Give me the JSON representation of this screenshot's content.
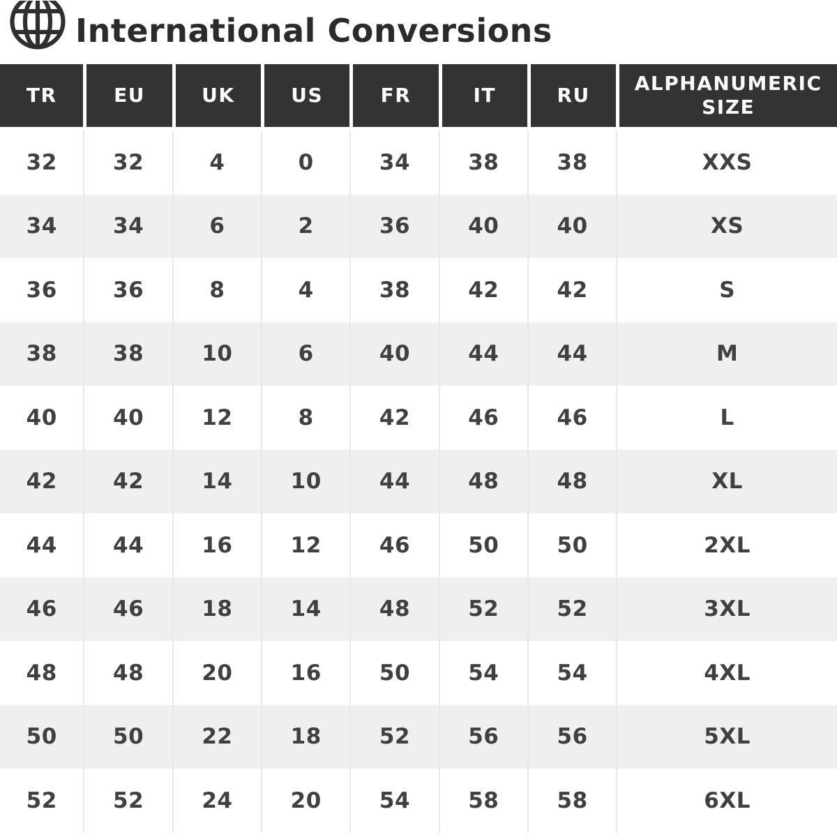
{
  "header": {
    "title": "International Conversions",
    "icon": "globe-icon"
  },
  "colors": {
    "header_bg": "#333234",
    "header_text": "#fafafa",
    "stripe_row": "#f0eff0",
    "plain_row": "#ffffff",
    "body_text": "#403f41",
    "title_text": "#2b2a2c",
    "column_separator": "#e9e8e9"
  },
  "chart_data": {
    "type": "table",
    "title": "International Conversions",
    "columns": [
      "TR",
      "EU",
      "UK",
      "US",
      "FR",
      "IT",
      "RU",
      "ALPHANUMERIC SIZE"
    ],
    "rows": [
      [
        "32",
        "32",
        "4",
        "0",
        "34",
        "38",
        "38",
        "XXS"
      ],
      [
        "34",
        "34",
        "6",
        "2",
        "36",
        "40",
        "40",
        "XS"
      ],
      [
        "36",
        "36",
        "8",
        "4",
        "38",
        "42",
        "42",
        "S"
      ],
      [
        "38",
        "38",
        "10",
        "6",
        "40",
        "44",
        "44",
        "M"
      ],
      [
        "40",
        "40",
        "12",
        "8",
        "42",
        "46",
        "46",
        "L"
      ],
      [
        "42",
        "42",
        "14",
        "10",
        "44",
        "48",
        "48",
        "XL"
      ],
      [
        "44",
        "44",
        "16",
        "12",
        "46",
        "50",
        "50",
        "2XL"
      ],
      [
        "46",
        "46",
        "18",
        "14",
        "48",
        "52",
        "52",
        "3XL"
      ],
      [
        "48",
        "48",
        "20",
        "16",
        "50",
        "54",
        "54",
        "4XL"
      ],
      [
        "50",
        "50",
        "22",
        "18",
        "52",
        "56",
        "56",
        "5XL"
      ],
      [
        "52",
        "52",
        "24",
        "20",
        "54",
        "58",
        "58",
        "6XL"
      ]
    ]
  }
}
